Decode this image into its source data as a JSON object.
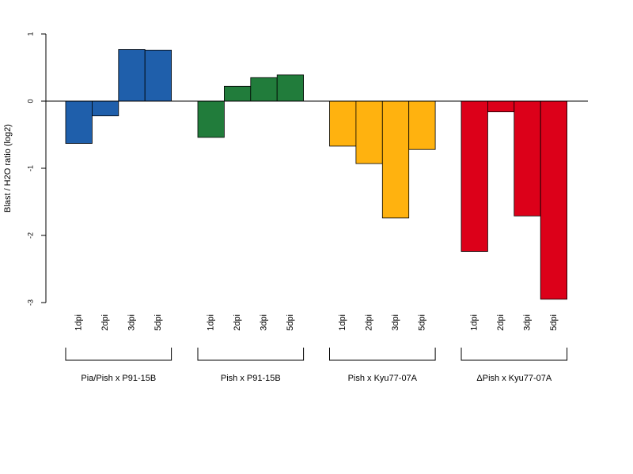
{
  "chart_data": {
    "type": "bar",
    "ylabel": "Blast / H2O ratio (log2)",
    "ylim": [
      -3,
      1
    ],
    "yticks": [
      "1",
      "0",
      "-1",
      "-2",
      "-3"
    ],
    "ytick_values": [
      1,
      0,
      -1,
      -2,
      -3
    ],
    "grid": false,
    "categories": [
      "1dpi",
      "2dpi",
      "3dpi",
      "5dpi"
    ],
    "groups": [
      {
        "name": "Pia/Pish x P91-15B",
        "color": "#1f5fab",
        "values": [
          -0.63,
          -0.22,
          0.77,
          0.76
        ]
      },
      {
        "name": "Pish x P91-15B",
        "color": "#217c3b",
        "values": [
          -0.54,
          0.22,
          0.35,
          0.39
        ]
      },
      {
        "name": "Pish x Kyu77-07A",
        "color": "#ffb20f",
        "values": [
          -0.67,
          -0.93,
          -1.74,
          -0.72
        ]
      },
      {
        "name": "ΔPish x Kyu77-07A",
        "color": "#dc0019",
        "values": [
          -2.24,
          -0.16,
          -1.71,
          -2.95
        ]
      }
    ]
  }
}
